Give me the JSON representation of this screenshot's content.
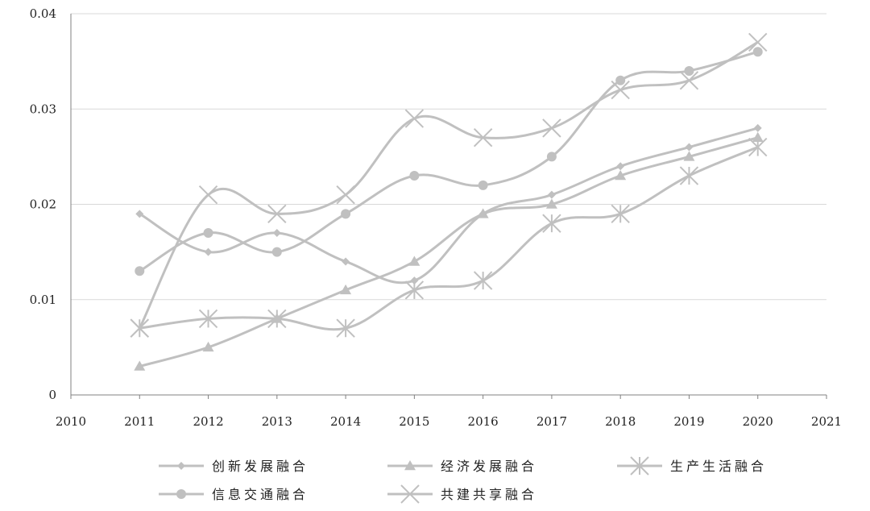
{
  "chart_data": {
    "type": "line",
    "x": [
      2011,
      2012,
      2013,
      2014,
      2015,
      2016,
      2017,
      2018,
      2019,
      2020
    ],
    "xlim": [
      2010,
      2021
    ],
    "xticks": [
      "2010",
      "2011",
      "2012",
      "2013",
      "2014",
      "2015",
      "2016",
      "2017",
      "2018",
      "2019",
      "2020",
      "2021"
    ],
    "ylim": [
      0,
      0.04
    ],
    "yticks": [
      "0",
      "0.01",
      "0.02",
      "0.03",
      "0.04"
    ],
    "grid": true,
    "legend_position": "bottom",
    "line_color": "#c0c0c0",
    "series": [
      {
        "name": "创新发展融合",
        "marker": "diamond",
        "values": [
          0.019,
          0.015,
          0.017,
          0.014,
          0.012,
          0.019,
          0.021,
          0.024,
          0.026,
          0.028
        ]
      },
      {
        "name": "经济发展融合",
        "marker": "triangle",
        "values": [
          0.003,
          0.005,
          0.008,
          0.011,
          0.014,
          0.019,
          0.02,
          0.023,
          0.025,
          0.027
        ]
      },
      {
        "name": "生产生活融合",
        "marker": "asterisk",
        "values": [
          0.007,
          0.008,
          0.008,
          0.007,
          0.011,
          0.012,
          0.018,
          0.019,
          0.023,
          0.026
        ]
      },
      {
        "name": "信息交通融合",
        "marker": "circle",
        "values": [
          0.013,
          0.017,
          0.015,
          0.019,
          0.023,
          0.022,
          0.025,
          0.033,
          0.034,
          0.036
        ]
      },
      {
        "name": "共建共享融合",
        "marker": "x",
        "values": [
          0.007,
          0.021,
          0.019,
          0.021,
          0.029,
          0.027,
          0.028,
          0.032,
          0.033,
          0.037
        ]
      }
    ]
  }
}
